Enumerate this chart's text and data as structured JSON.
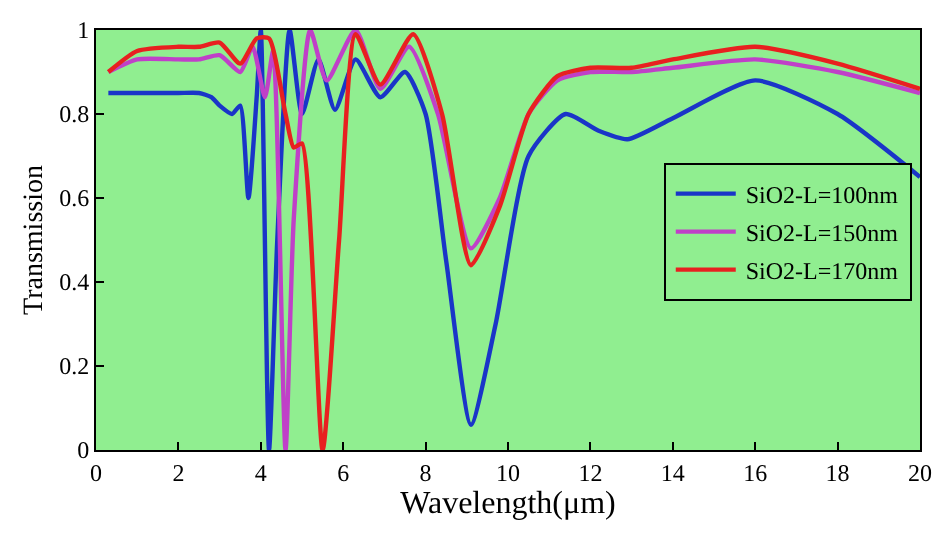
{
  "chart_data": {
    "type": "line",
    "xlabel": "Wavelength(μm)",
    "ylabel": "Transmission",
    "xlim": [
      0,
      20
    ],
    "xticks": [
      0,
      2,
      4,
      6,
      8,
      10,
      12,
      14,
      16,
      18,
      20
    ],
    "ylim": [
      0,
      1
    ],
    "yticks": [
      0,
      0.2,
      0.4,
      0.6,
      0.8,
      1
    ],
    "grid": false,
    "legend": "right",
    "line_style": "solid",
    "marker": "none",
    "series": [
      {
        "name": "SiO2-L=100nm",
        "color": "#1a35c8",
        "x": [
          0.3,
          1,
          2,
          2.5,
          2.8,
          3,
          3.3,
          3.5,
          3.7,
          3.9,
          4.0,
          4.2,
          4.4,
          4.7,
          5.0,
          5.4,
          5.8,
          6.3,
          6.9,
          7.5,
          8.0,
          8.5,
          9.1,
          9.7,
          10.5,
          11.4,
          12.2,
          12.9,
          14,
          16,
          18,
          20
        ],
        "values": [
          0.85,
          0.85,
          0.85,
          0.85,
          0.84,
          0.82,
          0.8,
          0.82,
          0.6,
          0.84,
          1.0,
          0.0,
          0.5,
          1.0,
          0.8,
          0.93,
          0.81,
          0.93,
          0.84,
          0.9,
          0.8,
          0.45,
          0.06,
          0.3,
          0.7,
          0.8,
          0.76,
          0.74,
          0.79,
          0.88,
          0.8,
          0.65
        ]
      },
      {
        "name": "SiO2-L=150nm",
        "color": "#c040c8",
        "x": [
          0.3,
          1,
          2,
          2.5,
          3,
          3.5,
          3.8,
          4.1,
          4.3,
          4.6,
          4.8,
          5.2,
          5.6,
          6.3,
          6.9,
          7.6,
          8.3,
          9.1,
          9.8,
          10.5,
          11.2,
          12,
          13,
          14,
          16,
          18,
          20
        ],
        "values": [
          0.9,
          0.93,
          0.93,
          0.93,
          0.94,
          0.9,
          0.96,
          0.84,
          0.95,
          0.0,
          0.55,
          1.0,
          0.88,
          1.0,
          0.86,
          0.96,
          0.8,
          0.48,
          0.6,
          0.8,
          0.88,
          0.9,
          0.9,
          0.91,
          0.93,
          0.9,
          0.85
        ]
      },
      {
        "name": "SiO2-L=170nm",
        "color": "#e82020",
        "x": [
          0.3,
          1,
          2,
          2.5,
          3,
          3.5,
          3.9,
          4.2,
          4.6,
          4.8,
          5.0,
          5.5,
          5.9,
          6.3,
          6.9,
          7.7,
          8.4,
          9.1,
          9.8,
          10.5,
          11.2,
          12,
          13,
          14,
          16,
          18,
          20
        ],
        "values": [
          0.9,
          0.95,
          0.96,
          0.96,
          0.97,
          0.92,
          0.98,
          0.98,
          0.8,
          0.72,
          0.73,
          0.0,
          0.5,
          0.99,
          0.87,
          0.99,
          0.8,
          0.44,
          0.58,
          0.8,
          0.89,
          0.91,
          0.91,
          0.93,
          0.96,
          0.92,
          0.86
        ]
      }
    ]
  }
}
